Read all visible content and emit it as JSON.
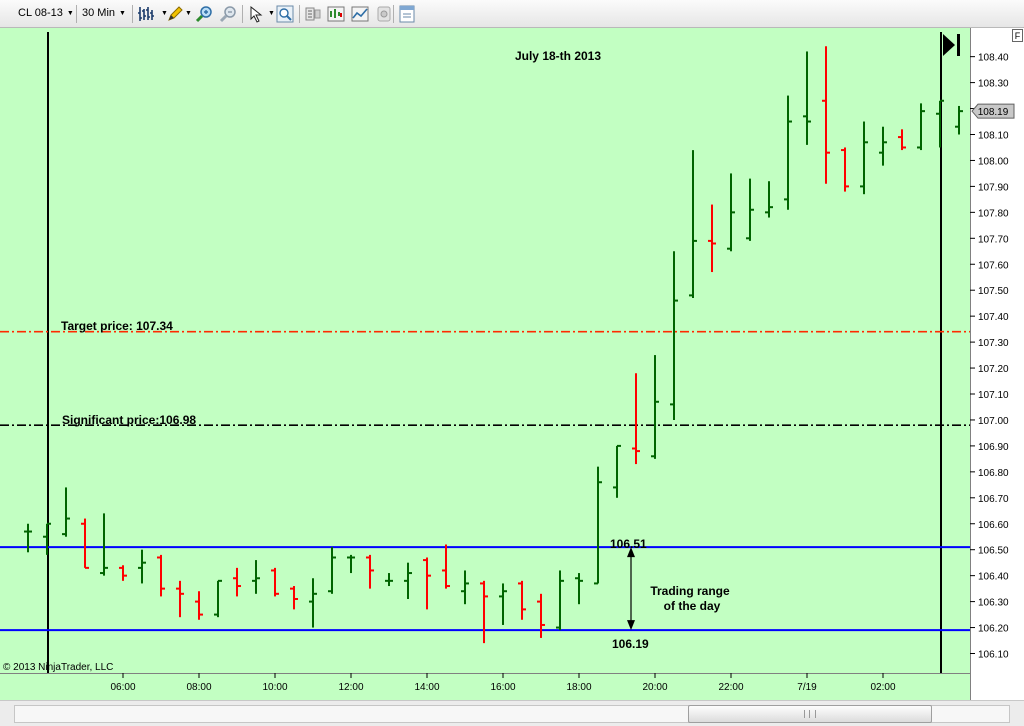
{
  "toolbar": {
    "instrument": "CL 08-13",
    "interval": "30 Min",
    "icons": [
      "bar-type-icon",
      "drawing-pencil-icon",
      "zoom-in-icon",
      "zoom-out-icon",
      "pointer-icon",
      "search-icon",
      "data-box-icon",
      "chart-style-icon",
      "indicators-icon",
      "strategies-icon",
      "properties-icon"
    ]
  },
  "colors": {
    "background": "#c2ffc2",
    "up_bar": "#006400",
    "down_bar": "#ff0000",
    "range_line": "#0000ff",
    "target_line": "#ff2a00",
    "significant_line": "#000000"
  },
  "chart": {
    "title": "July 18-th 2013",
    "copyright": "© 2013 NinjaTrader, LLC",
    "f_button": "F",
    "current_price": "108.19",
    "y_ticks": [
      "106.10",
      "106.20",
      "106.30",
      "106.40",
      "106.50",
      "106.60",
      "106.70",
      "106.80",
      "106.90",
      "107.00",
      "107.10",
      "107.20",
      "107.30",
      "107.40",
      "107.50",
      "107.60",
      "107.70",
      "107.80",
      "107.90",
      "108.00",
      "108.10",
      "108.20",
      "108.30",
      "108.40"
    ],
    "x_ticks": [
      "06:00",
      "08:00",
      "10:00",
      "12:00",
      "14:00",
      "16:00",
      "18:00",
      "20:00",
      "22:00",
      "7/19",
      "02:00"
    ],
    "target_label": "Target price: 107.34",
    "significant_label": "Significant price:106.98",
    "range_high_label": "106.51",
    "range_low_label": "106.19",
    "range_note_line1": "Trading range",
    "range_note_line2": "of the day"
  },
  "chart_data": {
    "type": "ohlc",
    "title": "July 18-th 2013",
    "ylim": [
      106.05,
      108.55
    ],
    "levels": {
      "target": 107.34,
      "significant": 106.98,
      "range_high": 106.51,
      "range_low": 106.19
    },
    "bars": [
      {
        "o": 106.57,
        "h": 106.6,
        "l": 106.49,
        "c": 106.57,
        "up": 1
      },
      {
        "o": 106.55,
        "h": 106.6,
        "l": 106.48,
        "c": 106.6,
        "up": 1
      },
      {
        "o": 106.56,
        "h": 106.74,
        "l": 106.55,
        "c": 106.62,
        "up": 1
      },
      {
        "o": 106.6,
        "h": 106.62,
        "l": 106.43,
        "c": 106.43,
        "up": 0
      },
      {
        "o": 106.41,
        "h": 106.64,
        "l": 106.4,
        "c": 106.43,
        "up": 1
      },
      {
        "o": 106.43,
        "h": 106.44,
        "l": 106.38,
        "c": 106.4,
        "up": 0
      },
      {
        "o": 106.43,
        "h": 106.5,
        "l": 106.37,
        "c": 106.45,
        "up": 1
      },
      {
        "o": 106.47,
        "h": 106.48,
        "l": 106.32,
        "c": 106.35,
        "up": 0
      },
      {
        "o": 106.35,
        "h": 106.38,
        "l": 106.24,
        "c": 106.33,
        "up": 0
      },
      {
        "o": 106.3,
        "h": 106.34,
        "l": 106.23,
        "c": 106.25,
        "up": 0
      },
      {
        "o": 106.25,
        "h": 106.38,
        "l": 106.24,
        "c": 106.38,
        "up": 1
      },
      {
        "o": 106.39,
        "h": 106.43,
        "l": 106.32,
        "c": 106.36,
        "up": 0
      },
      {
        "o": 106.38,
        "h": 106.46,
        "l": 106.33,
        "c": 106.39,
        "up": 1
      },
      {
        "o": 106.42,
        "h": 106.43,
        "l": 106.32,
        "c": 106.33,
        "up": 0
      },
      {
        "o": 106.35,
        "h": 106.36,
        "l": 106.27,
        "c": 106.31,
        "up": 0
      },
      {
        "o": 106.3,
        "h": 106.39,
        "l": 106.2,
        "c": 106.33,
        "up": 1
      },
      {
        "o": 106.34,
        "h": 106.51,
        "l": 106.33,
        "c": 106.47,
        "up": 1
      },
      {
        "o": 106.47,
        "h": 106.48,
        "l": 106.41,
        "c": 106.47,
        "up": 1
      },
      {
        "o": 106.47,
        "h": 106.48,
        "l": 106.35,
        "c": 106.42,
        "up": 0
      },
      {
        "o": 106.38,
        "h": 106.41,
        "l": 106.36,
        "c": 106.38,
        "up": 1
      },
      {
        "o": 106.38,
        "h": 106.45,
        "l": 106.31,
        "c": 106.41,
        "up": 1
      },
      {
        "o": 106.46,
        "h": 106.47,
        "l": 106.27,
        "c": 106.4,
        "up": 0
      },
      {
        "o": 106.42,
        "h": 106.52,
        "l": 106.35,
        "c": 106.36,
        "up": 0
      },
      {
        "o": 106.34,
        "h": 106.42,
        "l": 106.29,
        "c": 106.37,
        "up": 1
      },
      {
        "o": 106.37,
        "h": 106.38,
        "l": 106.14,
        "c": 106.32,
        "up": 0
      },
      {
        "o": 106.32,
        "h": 106.37,
        "l": 106.21,
        "c": 106.34,
        "up": 1
      },
      {
        "o": 106.37,
        "h": 106.38,
        "l": 106.23,
        "c": 106.27,
        "up": 0
      },
      {
        "o": 106.3,
        "h": 106.33,
        "l": 106.16,
        "c": 106.21,
        "up": 0
      },
      {
        "o": 106.2,
        "h": 106.42,
        "l": 106.19,
        "c": 106.38,
        "up": 1
      },
      {
        "o": 106.39,
        "h": 106.41,
        "l": 106.29,
        "c": 106.38,
        "up": 1
      },
      {
        "o": 106.37,
        "h": 106.82,
        "l": 106.37,
        "c": 106.76,
        "up": 1
      },
      {
        "o": 106.74,
        "h": 106.9,
        "l": 106.7,
        "c": 106.9,
        "up": 1
      },
      {
        "o": 106.89,
        "h": 107.18,
        "l": 106.83,
        "c": 106.88,
        "up": 0
      },
      {
        "o": 106.86,
        "h": 107.25,
        "l": 106.85,
        "c": 107.07,
        "up": 1
      },
      {
        "o": 107.06,
        "h": 107.65,
        "l": 107.0,
        "c": 107.46,
        "up": 1
      },
      {
        "o": 107.48,
        "h": 108.04,
        "l": 107.47,
        "c": 107.69,
        "up": 1
      },
      {
        "o": 107.69,
        "h": 107.83,
        "l": 107.57,
        "c": 107.68,
        "up": 0
      },
      {
        "o": 107.66,
        "h": 107.95,
        "l": 107.65,
        "c": 107.8,
        "up": 1
      },
      {
        "o": 107.7,
        "h": 107.93,
        "l": 107.69,
        "c": 107.81,
        "up": 1
      },
      {
        "o": 107.8,
        "h": 107.92,
        "l": 107.78,
        "c": 107.82,
        "up": 1
      },
      {
        "o": 107.85,
        "h": 108.25,
        "l": 107.81,
        "c": 108.15,
        "up": 1
      },
      {
        "o": 108.17,
        "h": 108.42,
        "l": 108.06,
        "c": 108.15,
        "up": 1
      },
      {
        "o": 108.23,
        "h": 108.44,
        "l": 107.91,
        "c": 108.03,
        "up": 0
      },
      {
        "o": 108.04,
        "h": 108.05,
        "l": 107.88,
        "c": 107.9,
        "up": 0
      },
      {
        "o": 107.9,
        "h": 108.15,
        "l": 107.87,
        "c": 108.07,
        "up": 1
      },
      {
        "o": 108.03,
        "h": 108.13,
        "l": 107.98,
        "c": 108.07,
        "up": 1
      },
      {
        "o": 108.09,
        "h": 108.12,
        "l": 108.04,
        "c": 108.05,
        "up": 0
      },
      {
        "o": 108.05,
        "h": 108.22,
        "l": 108.04,
        "c": 108.19,
        "up": 1
      },
      {
        "o": 108.18,
        "h": 108.23,
        "l": 108.05,
        "c": 108.23,
        "up": 1
      },
      {
        "o": 108.13,
        "h": 108.21,
        "l": 108.1,
        "c": 108.19,
        "up": 1
      }
    ]
  }
}
